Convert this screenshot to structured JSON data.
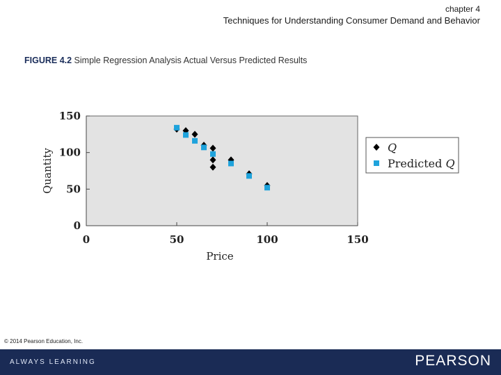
{
  "header": {
    "chapter": "chapter 4",
    "subtitle": "Techniques for Understanding Consumer Demand and Behavior"
  },
  "figure": {
    "label": "FIGURE 4.2",
    "caption": " Simple Regression  Analysis  Actual Versus Predicted Results"
  },
  "chart_data": {
    "type": "scatter",
    "xlabel": "Price",
    "ylabel": "Quantity",
    "xlim": [
      0,
      150
    ],
    "ylim": [
      0,
      150
    ],
    "xticks": [
      0,
      50,
      100,
      150
    ],
    "yticks": [
      0,
      50,
      100,
      150
    ],
    "grid": false,
    "legend_position": "right",
    "plot_background": "#e3e3e3",
    "series": [
      {
        "name": "Q",
        "marker": "diamond",
        "color": "#000000",
        "points": [
          [
            50,
            132
          ],
          [
            55,
            130
          ],
          [
            60,
            125
          ],
          [
            65,
            110
          ],
          [
            70,
            106
          ],
          [
            70,
            90
          ],
          [
            70,
            80
          ],
          [
            80,
            90
          ],
          [
            90,
            71
          ],
          [
            100,
            55
          ]
        ]
      },
      {
        "name": "Predicted Q",
        "marker": "square",
        "color": "#1fa3dc",
        "points": [
          [
            50,
            134
          ],
          [
            55,
            124
          ],
          [
            60,
            116
          ],
          [
            65,
            107
          ],
          [
            70,
            98
          ],
          [
            80,
            85
          ],
          [
            90,
            68
          ],
          [
            100,
            52
          ]
        ]
      }
    ]
  },
  "footer": {
    "copyright": "© 2014 Pearson Education, Inc.",
    "tagline": "ALWAYS LEARNING",
    "brand": "PEARSON"
  }
}
